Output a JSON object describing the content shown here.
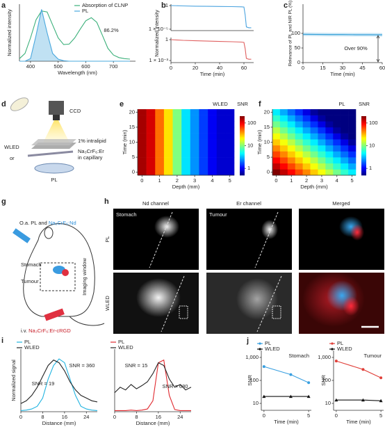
{
  "panel_labels": [
    "a",
    "b",
    "c",
    "d",
    "e",
    "f",
    "g",
    "h",
    "i",
    "j"
  ],
  "chart_data": [
    {
      "type": "line",
      "xlabel": "Wavelength (nm)",
      "ylabel": "Normalized intensity",
      "x": [
        360,
        380,
        400,
        420,
        440,
        460,
        480,
        500,
        520,
        540,
        560,
        580,
        600,
        620,
        640,
        660,
        680,
        700,
        720,
        740,
        760
      ],
      "series": [
        {
          "name": "Absorption of CLNP",
          "color": "#3bb07a",
          "values": [
            0.05,
            0.15,
            0.45,
            0.8,
            0.97,
            0.95,
            0.7,
            0.45,
            0.32,
            0.33,
            0.45,
            0.62,
            0.78,
            0.84,
            0.75,
            0.5,
            0.25,
            0.12,
            0.07,
            0.05,
            0.04
          ]
        },
        {
          "name": "PL",
          "color": "#4aa8de",
          "fill": true,
          "values": [
            0,
            0,
            0.05,
            0.5,
            1.0,
            0.55,
            0.15,
            0.04,
            0.01,
            0,
            0,
            0,
            0,
            0,
            0,
            0,
            0,
            0,
            0,
            0,
            0
          ]
        }
      ],
      "xlim": [
        360,
        780
      ],
      "ylim": [
        0,
        1.1
      ],
      "xticks": [
        400,
        500,
        600,
        700
      ],
      "legend": "upper right",
      "annotations": [
        "86.2%"
      ]
    },
    {
      "type": "line",
      "ylabel": "Normalized intensity",
      "yscale": "log",
      "x": [
        0,
        10,
        20,
        30,
        40,
        50,
        58,
        60,
        61,
        62,
        64,
        66
      ],
      "series": [
        {
          "color": "#4aa3df",
          "values": [
            1,
            0.85,
            0.75,
            0.7,
            0.65,
            0.6,
            0.55,
            0.5,
            0.01,
            3e-05,
            2e-05,
            2e-05
          ]
        }
      ],
      "xlim": [
        0,
        68
      ],
      "ylim": [
        5e-06,
        2
      ],
      "yticks": [
        {
          "value": 1,
          "label": "1"
        },
        {
          "value": 1e-05,
          "label": "1 × 10⁻⁵"
        }
      ]
    },
    {
      "type": "line",
      "xlabel": "Time (min)",
      "yscale": "log",
      "x": [
        0,
        10,
        20,
        30,
        40,
        50,
        58,
        60,
        61,
        62,
        64,
        66
      ],
      "series": [
        {
          "color": "#e06060",
          "values": [
            1,
            0.8,
            0.7,
            0.62,
            0.55,
            0.5,
            0.45,
            0.4,
            0.05,
            0.002,
            0.0015,
            0.0015
          ]
        }
      ],
      "xlim": [
        0,
        68
      ],
      "ylim": [
        0.0005,
        2
      ],
      "xticks": [
        0,
        20,
        40,
        60
      ],
      "yticks": [
        {
          "value": 1,
          "label": "1"
        },
        {
          "value": 0.001,
          "label": "1 × 10⁻³"
        }
      ]
    },
    {
      "type": "line",
      "xlabel": "Time (min)",
      "ylabel": "Relevance of PL and NIR PL (%)",
      "x": [
        0,
        10,
        20,
        30,
        40,
        50,
        60
      ],
      "series": [
        {
          "color": "#2b9bd6",
          "values": [
            97,
            96.5,
            96,
            96,
            95.5,
            95.5,
            95
          ]
        }
      ],
      "xlim": [
        0,
        60
      ],
      "ylim": [
        0,
        200
      ],
      "xticks": [
        0,
        15,
        30,
        45,
        60
      ],
      "yticks": [
        0,
        50,
        100
      ],
      "annotations": [
        "Over 90%"
      ]
    },
    {
      "type": "heatmap",
      "title": "WLED",
      "xlabel": "Depth (mm)",
      "ylabel": "Time (min)",
      "colorbar_label": "SNR",
      "colormap": "jet",
      "color_scale": "log",
      "clim": [
        0.5,
        200
      ],
      "cticks": [
        1,
        10,
        100
      ],
      "x": [
        0,
        0.5,
        1,
        1.5,
        2,
        2.5,
        3,
        3.5,
        4,
        4.5,
        5
      ],
      "y": [
        0,
        2,
        4,
        6,
        8,
        10,
        12,
        14,
        16,
        18,
        20
      ],
      "xlim": [
        -0.25,
        5.25
      ],
      "ylim": [
        -1,
        21
      ],
      "xticks": [
        0,
        1,
        2,
        3,
        4,
        5
      ],
      "yticks": [
        0,
        5,
        10,
        15,
        20
      ],
      "values": [
        [
          160,
          120,
          50,
          25,
          10,
          4,
          2.5,
          1.5,
          1,
          0.8,
          0.8
        ],
        [
          160,
          120,
          50,
          25,
          10,
          4,
          2.5,
          1.5,
          1,
          0.8,
          0.8
        ],
        [
          160,
          120,
          50,
          25,
          10,
          4,
          2.5,
          1.5,
          1,
          0.8,
          0.8
        ],
        [
          160,
          120,
          50,
          25,
          10,
          4,
          2.5,
          1.5,
          1,
          0.8,
          0.8
        ],
        [
          160,
          120,
          50,
          25,
          10,
          4,
          2.5,
          1.5,
          1,
          0.8,
          0.8
        ],
        [
          160,
          120,
          50,
          25,
          10,
          4,
          2.5,
          1.5,
          1,
          0.8,
          0.8
        ],
        [
          160,
          120,
          50,
          25,
          10,
          4,
          2.5,
          1.5,
          1,
          0.8,
          0.8
        ],
        [
          160,
          120,
          50,
          25,
          10,
          4,
          2.5,
          1.5,
          1,
          0.8,
          0.8
        ],
        [
          160,
          120,
          50,
          25,
          10,
          4,
          2.5,
          1.5,
          1,
          0.8,
          0.8
        ],
        [
          160,
          120,
          50,
          25,
          10,
          4,
          2.5,
          1.5,
          1,
          0.8,
          0.8
        ],
        [
          160,
          120,
          50,
          25,
          10,
          4,
          2.5,
          1.5,
          1,
          0.8,
          0.8
        ]
      ]
    },
    {
      "type": "heatmap",
      "title": "PL",
      "xlabel": "Depth (mm)",
      "ylabel": "Time (min)",
      "colorbar_label": "SNR",
      "colormap": "jet",
      "color_scale": "log",
      "clim": [
        0.5,
        200
      ],
      "cticks": [
        1,
        10,
        100
      ],
      "x": [
        0,
        0.5,
        1,
        1.5,
        2,
        2.5,
        3,
        3.5,
        4,
        4.5,
        5
      ],
      "y": [
        0,
        2,
        4,
        6,
        8,
        10,
        12,
        14,
        16,
        18,
        20
      ],
      "xlim": [
        -0.25,
        5.25
      ],
      "ylim": [
        -1,
        21
      ],
      "xticks": [
        0,
        1,
        2,
        3,
        4,
        5
      ],
      "yticks": [
        0,
        5,
        10,
        15,
        20
      ],
      "values": [
        [
          200,
          136,
          93,
          63,
          43,
          29,
          20,
          14,
          9.3,
          6.3,
          4.3
        ],
        [
          136,
          93,
          63,
          43,
          29,
          20,
          14,
          9.3,
          6.3,
          4.3,
          2.9
        ],
        [
          93,
          63,
          43,
          29,
          20,
          14,
          9.3,
          6.3,
          4.3,
          2.9,
          2
        ],
        [
          63,
          43,
          29,
          20,
          14,
          9.3,
          6.3,
          4.3,
          2.9,
          2,
          1.4
        ],
        [
          43,
          29,
          20,
          14,
          9.3,
          6.3,
          4.3,
          2.9,
          2,
          1.4,
          0.9
        ],
        [
          29,
          20,
          14,
          9.3,
          6.3,
          4.3,
          2.9,
          2,
          1.4,
          0.9,
          0.6
        ],
        [
          20,
          14,
          9.3,
          6.3,
          4.3,
          2.9,
          2,
          1.4,
          0.9,
          0.6,
          0.5
        ],
        [
          14,
          9.3,
          6.3,
          4.3,
          2.9,
          2,
          1.4,
          0.9,
          0.6,
          0.5,
          0.5
        ],
        [
          9.3,
          6.3,
          4.3,
          2.9,
          2,
          1.4,
          0.9,
          0.6,
          0.5,
          0.5,
          0.5
        ],
        [
          6.3,
          4.3,
          2.9,
          2,
          1.4,
          0.9,
          0.6,
          0.5,
          0.5,
          0.5,
          0.5
        ],
        [
          4.3,
          2.9,
          2,
          1.4,
          0.9,
          0.6,
          0.5,
          0.5,
          0.5,
          0.5,
          0.5
        ]
      ]
    },
    {
      "type": "line",
      "xlabel": "Distance (mm)",
      "ylabel": "Normalized signal",
      "x": [
        0,
        2,
        4,
        6,
        8,
        10,
        12,
        14,
        16,
        18,
        20,
        22,
        24,
        26,
        28
      ],
      "series": [
        {
          "name": "PL",
          "color": "#1fb3e0",
          "values": [
            0.02,
            0.03,
            0.05,
            0.1,
            0.25,
            0.6,
            0.85,
            0.97,
            0.9,
            0.6,
            0.3,
            0.1,
            0.05,
            0.03,
            0.02
          ]
        },
        {
          "name": "WLED",
          "color": "#222222",
          "values": [
            0.15,
            0.2,
            0.3,
            0.45,
            0.65,
            0.85,
            0.95,
            0.9,
            0.75,
            0.55,
            0.4,
            0.3,
            0.25,
            0.2,
            0.18
          ]
        }
      ],
      "xlim": [
        0,
        28
      ],
      "ylim": [
        0,
        1.15
      ],
      "xticks": [
        0,
        8,
        16,
        24
      ],
      "legend": "upper left",
      "annotations": [
        "SNR = 19",
        "SNR = 360"
      ]
    },
    {
      "type": "line",
      "xlabel": "Distance (mm)",
      "x": [
        0,
        2,
        4,
        6,
        8,
        10,
        12,
        14,
        16,
        18,
        20,
        22,
        24,
        26,
        28
      ],
      "series": [
        {
          "name": "PL",
          "color": "#e0282e",
          "values": [
            0.02,
            0.02,
            0.02,
            0.03,
            0.02,
            0.03,
            0.05,
            0.2,
            0.9,
            0.95,
            0.3,
            0.04,
            0.02,
            0.02,
            0.02
          ]
        },
        {
          "name": "WLED",
          "color": "#222222",
          "values": [
            0.35,
            0.45,
            0.4,
            0.5,
            0.42,
            0.48,
            0.55,
            0.7,
            0.9,
            0.85,
            0.6,
            0.45,
            0.5,
            0.4,
            0.45
          ]
        }
      ],
      "xlim": [
        0,
        28
      ],
      "ylim": [
        0,
        1.15
      ],
      "xticks": [
        0,
        8,
        16,
        24
      ],
      "legend": "upper left",
      "annotations": [
        "SNR = 15",
        "SNR = 680"
      ]
    },
    {
      "type": "line",
      "title": "Stomach",
      "xlabel": "Time (min)",
      "ylabel": "SNR",
      "yscale": "log",
      "x": [
        0,
        3,
        5
      ],
      "series": [
        {
          "name": "PL",
          "color": "#3aa0e0",
          "marker": "circle",
          "values": [
            400,
            180,
            80
          ]
        },
        {
          "name": "WLED",
          "color": "#111111",
          "marker": "triangle",
          "values": [
            20,
            20,
            20
          ]
        }
      ],
      "xlim": [
        -0.3,
        5.3
      ],
      "ylim": [
        5,
        2000
      ],
      "xticks": [
        0,
        5
      ],
      "yticks": [
        10,
        100,
        {
          "value": 1000,
          "label": "1,000"
        }
      ],
      "legend": "upper left"
    },
    {
      "type": "line",
      "title": "Tumour",
      "xlabel": "Time (min)",
      "ylabel": "SNR",
      "yscale": "log",
      "x": [
        0,
        3,
        5
      ],
      "series": [
        {
          "name": "PL",
          "color": "#e0403a",
          "marker": "circle",
          "values": [
            700,
            300,
            130
          ]
        },
        {
          "name": "WLED",
          "color": "#111111",
          "marker": "triangle",
          "values": [
            14,
            14,
            13
          ]
        }
      ],
      "xlim": [
        -0.3,
        5.3
      ],
      "ylim": [
        5,
        2000
      ],
      "xticks": [
        0,
        5
      ],
      "yticks": [
        10,
        100,
        {
          "value": 1000,
          "label": "1,000"
        }
      ],
      "legend": "upper left"
    }
  ],
  "diagram_d": {
    "camera": "CCD",
    "phantom": "1% intralipid",
    "lamp": "WLED",
    "or": "or",
    "sample": "Na₃CrF₆:Er",
    "sample_note": "in capillary",
    "source": "PL"
  },
  "diagram_g": {
    "oral": "O.a. PL and",
    "oral_probe": "Na₃CrF₆:Nd",
    "stomach": "Stomach",
    "tumour": "Tumour",
    "window": "Imaging window",
    "iv": "i.v.",
    "iv_probe": "Na₃CrF₆:Er-cRGD"
  },
  "images_h": {
    "columns": [
      "Nd channel",
      "Er channel",
      "Merged"
    ],
    "rows": [
      "PL",
      "WLED"
    ],
    "stomach": "Stomach",
    "tumour": "Tumour"
  }
}
